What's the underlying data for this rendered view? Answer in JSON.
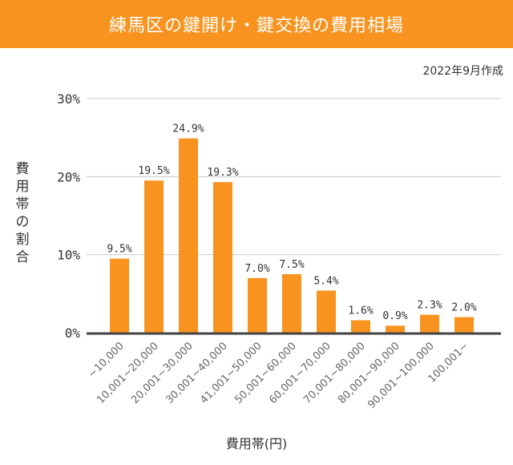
{
  "chart_data": {
    "type": "bar",
    "title": "練馬区の鍵開け・鍵交換の費用相場",
    "subtitle": "2022年9月作成",
    "xlabel": "費用帯(円)",
    "ylabel": "費用帯の割合",
    "ylim": [
      0,
      30
    ],
    "yticks": [
      "0%",
      "10%",
      "20%",
      "30%"
    ],
    "grid": true,
    "categories": [
      "~10,000",
      "10,001~20,000",
      "20,001~30,000",
      "30,001~40,000",
      "41,001~50,000",
      "50,001~60,000",
      "60,001~70,000",
      "70,001~80,000",
      "80,001~90,000",
      "90,001~100,000",
      "100,001~"
    ],
    "values": [
      9.5,
      19.5,
      24.9,
      19.3,
      7.0,
      7.5,
      5.4,
      1.6,
      0.9,
      2.3,
      2.0
    ],
    "data_labels": [
      "9.5%",
      "19.5%",
      "24.9%",
      "19.3%",
      "7.0%",
      "7.5%",
      "5.4%",
      "1.6%",
      "0.9%",
      "2.3%",
      "2.0%"
    ],
    "bar_color": "#f7931e"
  }
}
